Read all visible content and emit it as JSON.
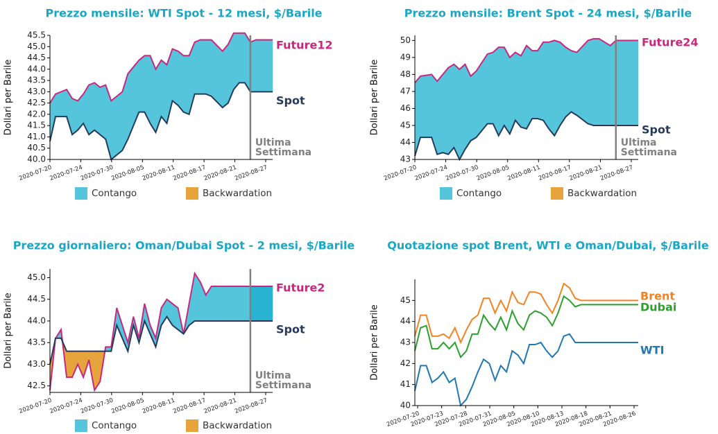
{
  "colors": {
    "title": "#1aa7c4",
    "contango": "#55c5dc",
    "contango_dark": "#29b3d1",
    "backwardation": "#e8a43c",
    "future_line": "#c8277e",
    "spot_line": "#263a5c",
    "vline": "#808080",
    "brent": "#f5821f",
    "dubai": "#2ca02c",
    "wti": "#1f77b4"
  },
  "legend": {
    "contango": "Contango",
    "backwardation": "Backwardation"
  },
  "chart_data": [
    {
      "id": "wti",
      "type": "area",
      "title": "Prezzo mensile: WTI Spot - 12 mesi, $/Barile",
      "ylabel": "Dollari per Barile",
      "ylim": [
        40.0,
        45.5
      ],
      "yticks": [
        40.0,
        40.5,
        41.0,
        41.5,
        42.0,
        42.5,
        43.0,
        43.5,
        44.0,
        44.5,
        45.0,
        45.5
      ],
      "ytick_labels": [
        "40.0",
        "40.5",
        "41.0",
        "41.5",
        "42.0",
        "42.5",
        "43.0",
        "43.5",
        "44.0",
        "44.5",
        "45.0",
        "45.5"
      ],
      "xticks": [
        "2020-07-20",
        "2020-07-24",
        "2020-07-30",
        "2020-08-05",
        "2020-08-11",
        "2020-08-17",
        "2020-08-21",
        "2020-08-27"
      ],
      "x": [
        0,
        1,
        3,
        4,
        5,
        6,
        7,
        8,
        9,
        10,
        11,
        13,
        14,
        15,
        16,
        17,
        18,
        19,
        20,
        21,
        22,
        23,
        24,
        25,
        26,
        27,
        28,
        29,
        31,
        32,
        33,
        34,
        35,
        36,
        37,
        38,
        39,
        40
      ],
      "series": [
        {
          "name": "Future12",
          "values": [
            42.5,
            42.9,
            43.1,
            42.7,
            42.6,
            42.9,
            43.3,
            43.4,
            43.2,
            43.3,
            42.6,
            43.0,
            43.8,
            44.1,
            44.4,
            44.6,
            44.6,
            44.0,
            44.4,
            44.2,
            44.9,
            44.8,
            44.6,
            44.6,
            45.2,
            45.3,
            45.3,
            45.3,
            44.8,
            45.1,
            45.6,
            45.6,
            45.6,
            45.2,
            45.3,
            45.3,
            45.3,
            45.3
          ]
        },
        {
          "name": "Spot",
          "values": [
            40.8,
            41.9,
            41.9,
            41.1,
            41.3,
            41.6,
            41.1,
            41.3,
            41.1,
            40.9,
            40.0,
            40.4,
            40.9,
            41.5,
            42.1,
            42.1,
            41.6,
            41.2,
            41.9,
            41.6,
            42.6,
            42.4,
            42.1,
            42.0,
            42.9,
            42.9,
            42.9,
            42.8,
            42.3,
            42.5,
            43.1,
            43.4,
            43.4,
            43.0,
            43.0,
            43.0,
            43.0,
            43.0
          ]
        }
      ],
      "labels": [
        "Future12",
        "Spot"
      ],
      "annotation": [
        "Ultima",
        "Settimana"
      ]
    },
    {
      "id": "brent",
      "type": "area",
      "title": "Prezzo mensile: Brent Spot - 24 mesi, $/Barile",
      "ylabel": "Dollari per Barile",
      "ylim": [
        43,
        50.3
      ],
      "yticks": [
        43,
        44,
        45,
        46,
        47,
        48,
        49,
        50
      ],
      "ytick_labels": [
        "43",
        "44",
        "45",
        "46",
        "47",
        "48",
        "49",
        "50"
      ],
      "xticks": [
        "2020-07-20",
        "2020-07-24",
        "2020-07-30",
        "2020-08-05",
        "2020-08-11",
        "2020-08-17",
        "2020-08-21",
        "2020-08-27"
      ],
      "x": [
        0,
        1,
        3,
        4,
        5,
        6,
        7,
        8,
        9,
        10,
        11,
        13,
        14,
        15,
        16,
        17,
        18,
        19,
        20,
        21,
        22,
        23,
        24,
        25,
        26,
        27,
        28,
        29,
        31,
        32,
        33,
        34,
        35,
        36,
        37,
        38,
        39,
        40
      ],
      "series": [
        {
          "name": "Future24",
          "values": [
            47.5,
            47.9,
            48.0,
            47.6,
            48.0,
            48.4,
            48.6,
            48.3,
            48.6,
            47.9,
            48.2,
            49.2,
            49.3,
            49.6,
            49.6,
            49.0,
            49.3,
            49.1,
            49.7,
            49.4,
            49.4,
            49.9,
            49.9,
            50.0,
            49.9,
            49.6,
            49.4,
            49.3,
            50.0,
            50.1,
            50.1,
            49.9,
            49.7,
            50.0,
            50.0,
            50.0,
            50.0,
            50.0
          ]
        },
        {
          "name": "Spot",
          "values": [
            43.2,
            44.3,
            44.3,
            43.3,
            43.4,
            43.3,
            43.7,
            43.0,
            43.6,
            44.1,
            44.3,
            45.1,
            45.1,
            44.4,
            45.0,
            44.5,
            45.3,
            44.9,
            44.8,
            45.4,
            45.4,
            45.3,
            44.8,
            44.4,
            45.0,
            45.5,
            45.8,
            45.6,
            45.1,
            45.0,
            45.0,
            45.0,
            45.0,
            45.0,
            45.0,
            45.0,
            45.0,
            45.0
          ]
        }
      ],
      "labels": [
        "Future24",
        "Spot"
      ],
      "annotation": [
        "Ultima",
        "Settimana"
      ]
    },
    {
      "id": "oman",
      "type": "area",
      "title": "Prezzo giornaliero: Oman/Dubai Spot - 2 mesi, $/Barile",
      "ylabel": "Dollari per Barile",
      "ylim": [
        42.35,
        45.2
      ],
      "yticks": [
        42.5,
        43.0,
        43.5,
        44.0,
        44.5,
        45.0
      ],
      "ytick_labels": [
        "42.5",
        "43.0",
        "43.5",
        "44.0",
        "44.5",
        "45.0"
      ],
      "xticks": [
        "2020-07-20",
        "2020-07-24",
        "2020-07-30",
        "2020-08-05",
        "2020-08-11",
        "2020-08-17",
        "2020-08-21",
        "2020-08-27"
      ],
      "x": [
        0,
        1,
        2,
        3,
        4,
        5,
        6,
        7,
        8,
        9,
        10,
        11,
        12,
        13,
        14,
        15,
        16,
        17,
        18,
        19,
        20,
        21,
        22,
        23,
        24,
        25,
        26,
        27,
        28,
        29,
        30,
        31,
        32,
        33,
        34,
        35,
        36,
        37,
        38,
        39,
        40
      ],
      "series": [
        {
          "name": "Future2",
          "values": [
            42.4,
            43.6,
            43.8,
            42.7,
            42.7,
            43.0,
            42.7,
            43.1,
            42.4,
            42.6,
            43.4,
            43.4,
            44.3,
            43.9,
            43.5,
            44.1,
            43.6,
            44.4,
            43.9,
            43.6,
            44.3,
            44.5,
            44.4,
            44.3,
            43.7,
            44.4,
            45.1,
            44.9,
            44.6,
            44.8,
            44.8,
            44.8,
            44.8,
            44.8,
            44.8,
            44.8,
            44.8,
            44.8,
            44.8,
            44.8,
            44.8
          ]
        },
        {
          "name": "Spot",
          "values": [
            43.0,
            43.6,
            43.6,
            43.3,
            43.3,
            43.3,
            43.3,
            43.3,
            43.3,
            43.3,
            43.3,
            43.3,
            43.9,
            43.6,
            43.3,
            43.9,
            43.5,
            44.0,
            43.7,
            43.4,
            43.9,
            44.1,
            43.9,
            43.8,
            43.7,
            43.9,
            44.0,
            44.0,
            44.0,
            44.0,
            44.0,
            44.0,
            44.0,
            44.0,
            44.0,
            44.0,
            44.0,
            44.0,
            44.0,
            44.0,
            44.0
          ]
        }
      ],
      "labels": [
        "Future2",
        "Spot"
      ],
      "annotation": [
        "Ultima",
        "Settimana"
      ]
    },
    {
      "id": "quot",
      "type": "line",
      "title": "Quotazione spot Brent, WTI e Oman/Dubai, $/Barile",
      "ylabel": "Dollari per Barile",
      "ylim": [
        40,
        46
      ],
      "yticks": [
        40,
        41,
        42,
        43,
        44,
        45
      ],
      "ytick_labels": [
        "40",
        "41",
        "42",
        "43",
        "44",
        "45"
      ],
      "xticks": [
        "2020-07-20",
        "2020-07-23",
        "2020-07-28",
        "2020-07-31",
        "2020-08-05",
        "2020-08-10",
        "2020-08-13",
        "2020-08-18",
        "2020-08-21",
        "2020-08-26"
      ],
      "x": [
        0,
        1,
        2,
        3,
        4,
        5,
        6,
        7,
        8,
        9,
        10,
        11,
        12,
        13,
        14,
        15,
        16,
        17,
        18,
        19,
        20,
        21,
        22,
        23,
        24,
        25,
        26,
        27,
        28,
        29,
        30,
        31,
        32,
        33,
        34,
        35,
        36,
        37,
        38,
        39
      ],
      "series": [
        {
          "name": "Brent",
          "values": [
            43.3,
            44.3,
            44.3,
            43.3,
            43.3,
            43.4,
            43.2,
            43.7,
            43.0,
            43.6,
            44.1,
            44.3,
            45.1,
            45.1,
            44.4,
            45.0,
            44.5,
            45.4,
            44.9,
            44.8,
            45.4,
            45.4,
            45.3,
            44.8,
            44.4,
            45.0,
            45.8,
            45.6,
            45.1,
            45.0,
            45.0,
            45.0,
            45.0,
            45.0,
            45.0,
            45.0,
            45.0,
            45.0,
            45.0,
            45.0
          ]
        },
        {
          "name": "Dubai",
          "values": [
            42.6,
            43.7,
            43.8,
            42.7,
            42.7,
            43.0,
            42.7,
            43.0,
            42.3,
            42.6,
            43.4,
            43.4,
            44.3,
            43.9,
            43.6,
            44.2,
            43.6,
            44.5,
            43.9,
            43.6,
            44.3,
            44.5,
            44.4,
            44.2,
            43.8,
            44.4,
            45.2,
            45.0,
            44.7,
            44.8,
            44.8,
            44.8,
            44.8,
            44.8,
            44.8,
            44.8,
            44.8,
            44.8,
            44.8,
            44.8
          ]
        },
        {
          "name": "WTI",
          "values": [
            40.7,
            41.9,
            41.9,
            41.1,
            41.3,
            41.6,
            41.1,
            41.3,
            40.0,
            40.3,
            40.9,
            41.6,
            42.2,
            42.0,
            41.2,
            41.9,
            41.6,
            42.6,
            42.4,
            42.0,
            42.9,
            42.9,
            43.0,
            42.6,
            42.3,
            42.6,
            43.3,
            43.4,
            43.0,
            43.0,
            43.0,
            43.0,
            43.0,
            43.0,
            43.0,
            43.0,
            43.0,
            43.0,
            43.0,
            43.0
          ]
        }
      ],
      "labels": [
        "Brent",
        "Dubai",
        "WTI"
      ]
    }
  ]
}
